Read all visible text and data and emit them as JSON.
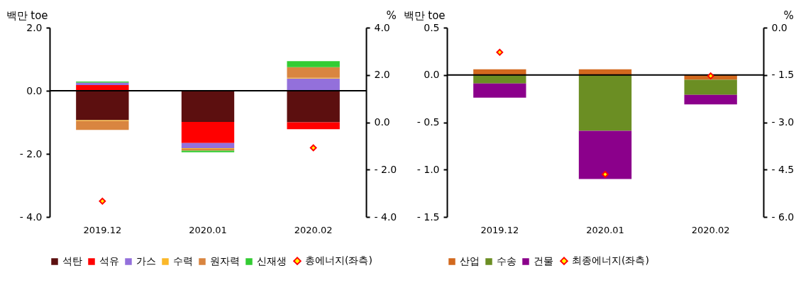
{
  "chart_data": [
    {
      "type": "bar",
      "stacked": true,
      "categories": [
        "2019.12",
        "2020.01",
        "2020.02"
      ],
      "ylabel": "백만 toe",
      "y2label": "%",
      "ylim": [
        -4,
        2
      ],
      "yticks": [
        {
          "value": 2,
          "label": "2.0"
        },
        {
          "value": 0,
          "label": "0.0"
        },
        {
          "value": -2,
          "label": "- 2.0"
        },
        {
          "value": -4,
          "label": "- 4.0"
        }
      ],
      "y2lim": [
        -4,
        4
      ],
      "y2ticks": [
        {
          "value": 4,
          "label": "4.0"
        },
        {
          "value": 2,
          "label": "2.0"
        },
        {
          "value": 0,
          "label": "0.0"
        },
        {
          "value": -2,
          "label": "- 2.0"
        },
        {
          "value": -4,
          "label": "- 4.0"
        }
      ],
      "legend": "bottom",
      "ref_lines": [
        {
          "axis": "y",
          "value": 0,
          "color": "#000000"
        }
      ],
      "series": [
        {
          "name": "석탄",
          "color": "#5c0f0f",
          "values": [
            -0.93,
            -0.99,
            -1.0
          ]
        },
        {
          "name": "석유",
          "color": "#ff0000",
          "values": [
            0.18,
            -0.67,
            -0.22
          ]
        },
        {
          "name": "가스",
          "color": "#9370db",
          "values": [
            0.08,
            -0.16,
            0.39
          ]
        },
        {
          "name": "수력",
          "color": "#fbb829",
          "values": [
            -0.03,
            -0.02,
            0.02
          ]
        },
        {
          "name": "원자력",
          "color": "#d98540",
          "values": [
            -0.28,
            -0.06,
            0.34
          ]
        },
        {
          "name": "신재생",
          "color": "#33cc33",
          "values": [
            0.03,
            -0.05,
            0.19
          ]
        },
        {
          "name": "총에너지(좌측)",
          "type": "scatter",
          "marker": "diamond",
          "color": "#ffff00",
          "values": [
            -3.5,
            null,
            -1.81
          ]
        }
      ]
    },
    {
      "type": "bar",
      "stacked": true,
      "categories": [
        "2019.12",
        "2020.01",
        "2020.02"
      ],
      "ylabel": "백만 toe",
      "y2label": "%",
      "ylim": [
        -1.5,
        0.5
      ],
      "yticks": [
        {
          "value": 0.5,
          "label": "0.5"
        },
        {
          "value": 0,
          "label": "0.0"
        },
        {
          "value": -0.5,
          "label": "- 0.5"
        },
        {
          "value": -1,
          "label": "- 1.0"
        },
        {
          "value": -1.5,
          "label": "- 1.5"
        }
      ],
      "y2lim": [
        -6,
        0
      ],
      "y2ticks": [
        {
          "value": 0,
          "label": "0.0"
        },
        {
          "value": -1.5,
          "label": "- 1.5"
        },
        {
          "value": -3,
          "label": "- 3.0"
        },
        {
          "value": -4.5,
          "label": "- 4.5"
        },
        {
          "value": -6,
          "label": "- 6.0"
        }
      ],
      "legend": "bottom",
      "ref_lines": [
        {
          "axis": "y",
          "value": 0,
          "color": "#000000"
        }
      ],
      "series": [
        {
          "name": "산업",
          "color": "#d2691e",
          "values": [
            0.06,
            0.06,
            -0.05
          ]
        },
        {
          "name": "수송",
          "color": "#6b8e23",
          "values": [
            -0.09,
            -0.59,
            -0.16
          ]
        },
        {
          "name": "건물",
          "color": "#8b008b",
          "values": [
            -0.15,
            -0.51,
            -0.1
          ]
        },
        {
          "name": "최종에너지(좌측)",
          "type": "scatter",
          "marker": "diamond",
          "color": "#ffff00",
          "values": [
            0.24,
            -1.05,
            -0.01
          ]
        }
      ]
    }
  ]
}
